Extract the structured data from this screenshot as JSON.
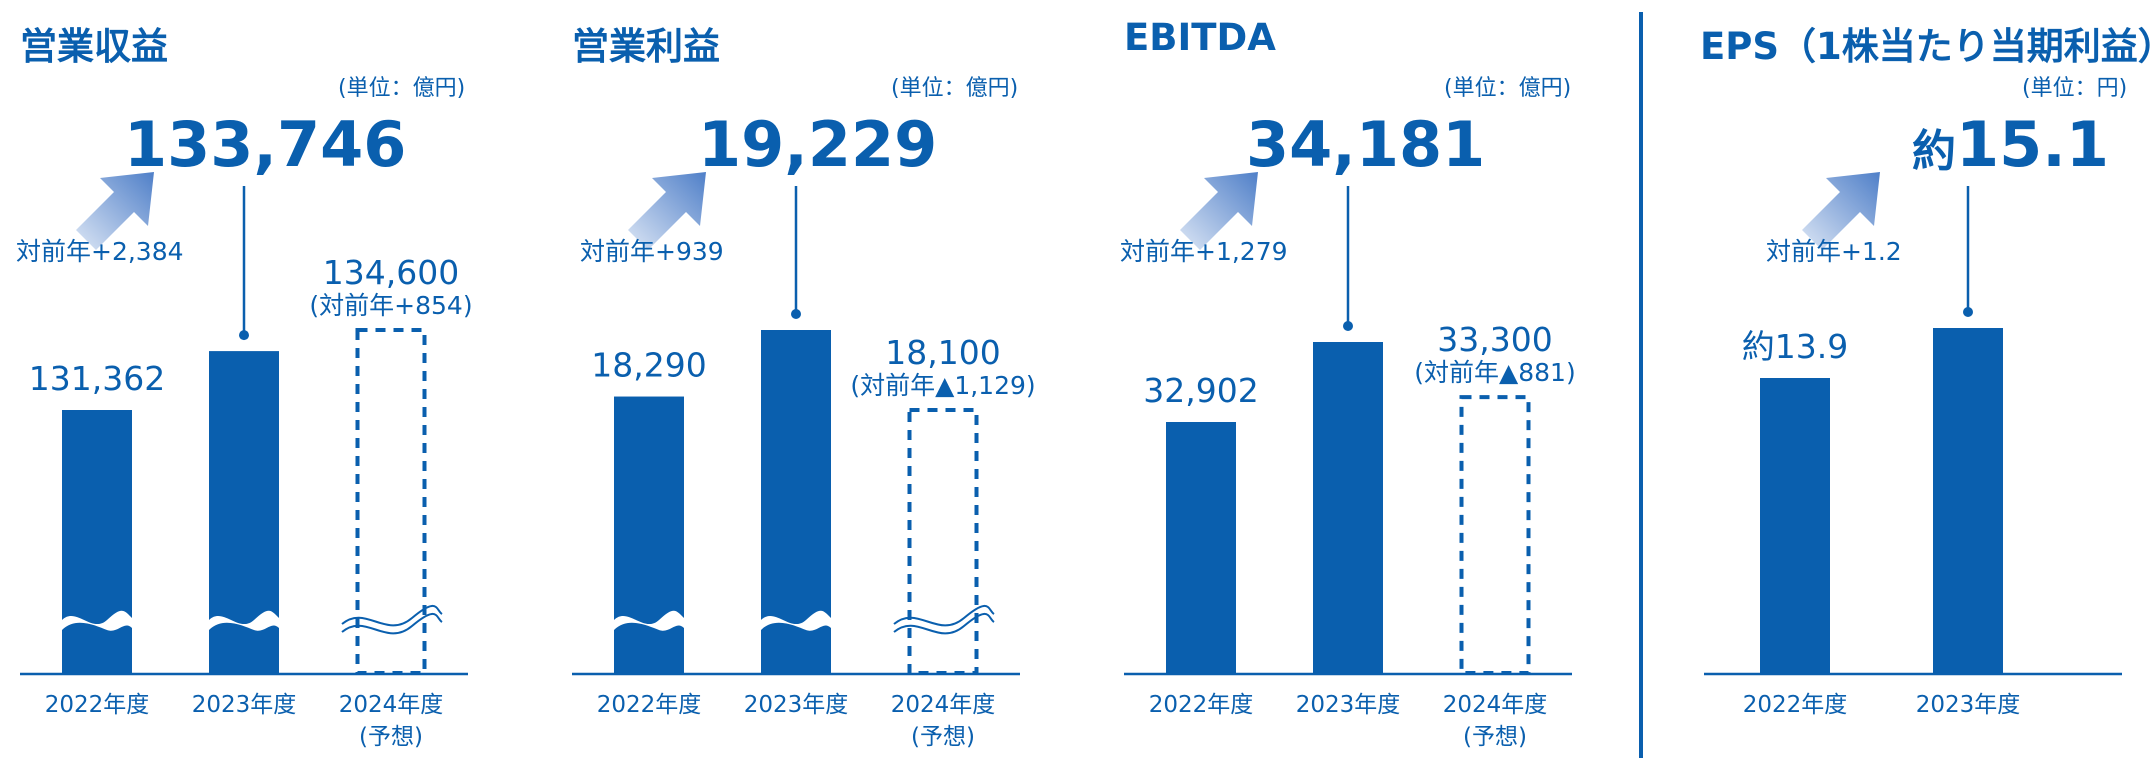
{
  "colors": {
    "primary": "#0a5fae",
    "arrow_light": "#dce6f5",
    "arrow_dark": "#4f7fc8"
  },
  "panels": [
    {
      "title": "営業収益",
      "unit": "(単位：億円)",
      "headline_prefix": "",
      "headline": "133,746",
      "yoy": "対前年+2,384",
      "chart_data": {
        "type": "bar",
        "categories": [
          "2022年度",
          "2023年度",
          "2024年度 (予想)"
        ],
        "category_lines": [
          [
            "2022年度"
          ],
          [
            "2023年度"
          ],
          [
            "2024年度",
            "(予想)"
          ]
        ],
        "values": [
          131362,
          133746,
          134600
        ],
        "value_labels": [
          "131,362",
          "",
          "134,600"
        ],
        "value_sublabels": [
          "",
          "",
          "(対前年+854)"
        ],
        "forecast": [
          false,
          false,
          true
        ],
        "axis_break": true
      }
    },
    {
      "title": "営業利益",
      "unit": "(単位：億円)",
      "headline_prefix": "",
      "headline": "19,229",
      "yoy": "対前年+939",
      "chart_data": {
        "type": "bar",
        "categories": [
          "2022年度",
          "2023年度",
          "2024年度 (予想)"
        ],
        "category_lines": [
          [
            "2022年度"
          ],
          [
            "2023年度"
          ],
          [
            "2024年度",
            "(予想)"
          ]
        ],
        "values": [
          18290,
          19229,
          18100
        ],
        "value_labels": [
          "18,290",
          "",
          "18,100"
        ],
        "value_sublabels": [
          "",
          "",
          "(対前年▲1,129)"
        ],
        "forecast": [
          false,
          false,
          true
        ],
        "axis_break": true
      }
    },
    {
      "title": "EBITDA",
      "unit": "(単位：億円)",
      "headline_prefix": "",
      "headline": "34,181",
      "yoy": "対前年+1,279",
      "chart_data": {
        "type": "bar",
        "categories": [
          "2022年度",
          "2023年度",
          "2024年度 (予想)"
        ],
        "category_lines": [
          [
            "2022年度"
          ],
          [
            "2023年度"
          ],
          [
            "2024年度",
            "(予想)"
          ]
        ],
        "values": [
          32902,
          34181,
          33300
        ],
        "value_labels": [
          "32,902",
          "",
          "33,300"
        ],
        "value_sublabels": [
          "",
          "",
          "(対前年▲881)"
        ],
        "forecast": [
          false,
          false,
          true
        ],
        "axis_break": false
      }
    },
    {
      "title": "EPS（1株当たり当期利益）",
      "unit": "(単位：円)",
      "headline_prefix": "約",
      "headline": "15.1",
      "yoy": "対前年+1.2",
      "chart_data": {
        "type": "bar",
        "categories": [
          "2022年度",
          "2023年度"
        ],
        "category_lines": [
          [
            "2022年度"
          ],
          [
            "2023年度"
          ]
        ],
        "values": [
          13.9,
          15.1
        ],
        "value_labels": [
          "約13.9",
          ""
        ],
        "value_sublabels": [
          "",
          ""
        ],
        "forecast": [
          false,
          false
        ],
        "axis_break": false
      }
    }
  ]
}
